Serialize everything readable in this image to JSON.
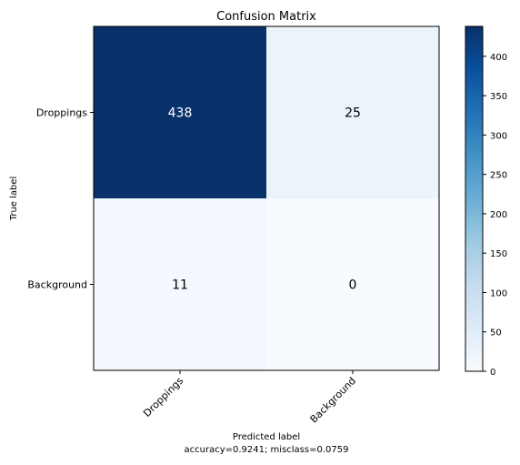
{
  "chart_data": {
    "type": "heatmap",
    "title": "Confusion Matrix",
    "xlabel": "Predicted label",
    "xlabel_sub": "accuracy=0.9241; misclass=0.0759",
    "ylabel": "True label",
    "row_labels": [
      "Droppings",
      "Background"
    ],
    "col_labels": [
      "Droppings",
      "Background"
    ],
    "values": [
      [
        438,
        25
      ],
      [
        11,
        0
      ]
    ],
    "colormap": "Blues",
    "color_range": [
      0,
      438
    ],
    "colorbar_ticks": [
      0,
      50,
      100,
      150,
      200,
      250,
      300,
      350,
      400
    ],
    "text_colors": {
      "dark_bg": "#ffffff",
      "light_bg": "#000000"
    }
  }
}
